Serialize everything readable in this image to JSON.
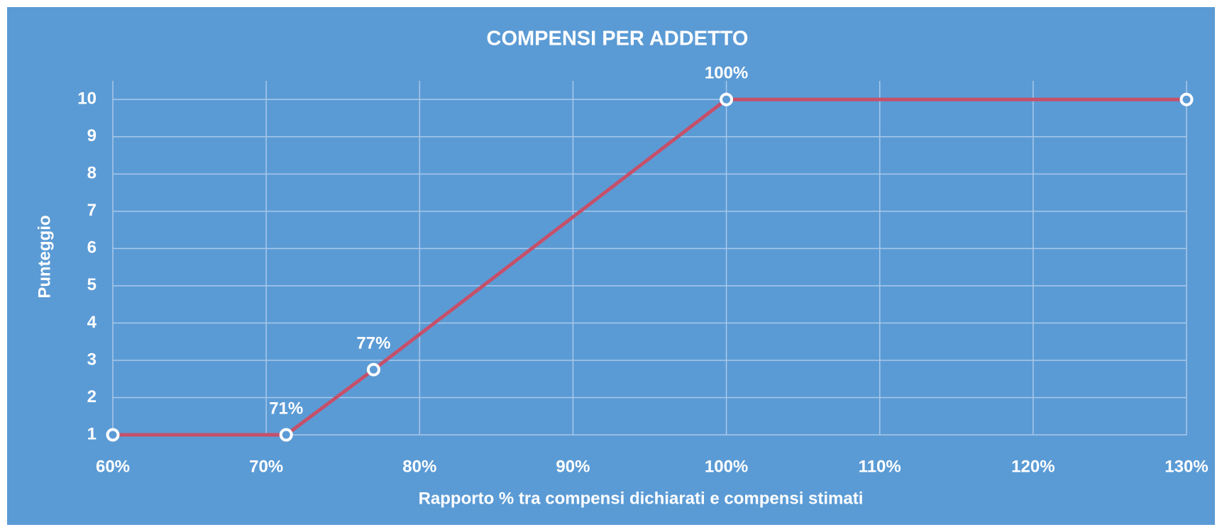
{
  "chart_data": {
    "type": "line",
    "title": "COMPENSI PER ADDETTO",
    "x_label": "Rapporto % tra compensi dichiarati e compensi stimati",
    "y_label": "Punteggio",
    "x": [
      60,
      71.3,
      77,
      100,
      130
    ],
    "series": [
      {
        "name": "Punteggio",
        "color": "#c5506a",
        "values": [
          1,
          1,
          2.75,
          10,
          10
        ]
      }
    ],
    "x_labels": [
      null,
      "71%",
      "77%",
      "100%",
      null
    ],
    "xlim": [
      60,
      130
    ],
    "xticks": [
      {
        "value": 60,
        "label": "60%"
      },
      {
        "value": 70,
        "label": "70%"
      },
      {
        "value": 80,
        "label": "80%"
      },
      {
        "value": 90,
        "label": "90%"
      },
      {
        "value": 100,
        "label": "100%"
      },
      {
        "value": 110,
        "label": "110%"
      },
      {
        "value": 120,
        "label": "120%"
      },
      {
        "value": 130,
        "label": "130%"
      }
    ],
    "ylim": [
      1,
      10.5
    ],
    "yticks": [
      1,
      2,
      3,
      4,
      5,
      6,
      7,
      8,
      9,
      10
    ],
    "grid": true,
    "background": "#5b9bd5"
  }
}
